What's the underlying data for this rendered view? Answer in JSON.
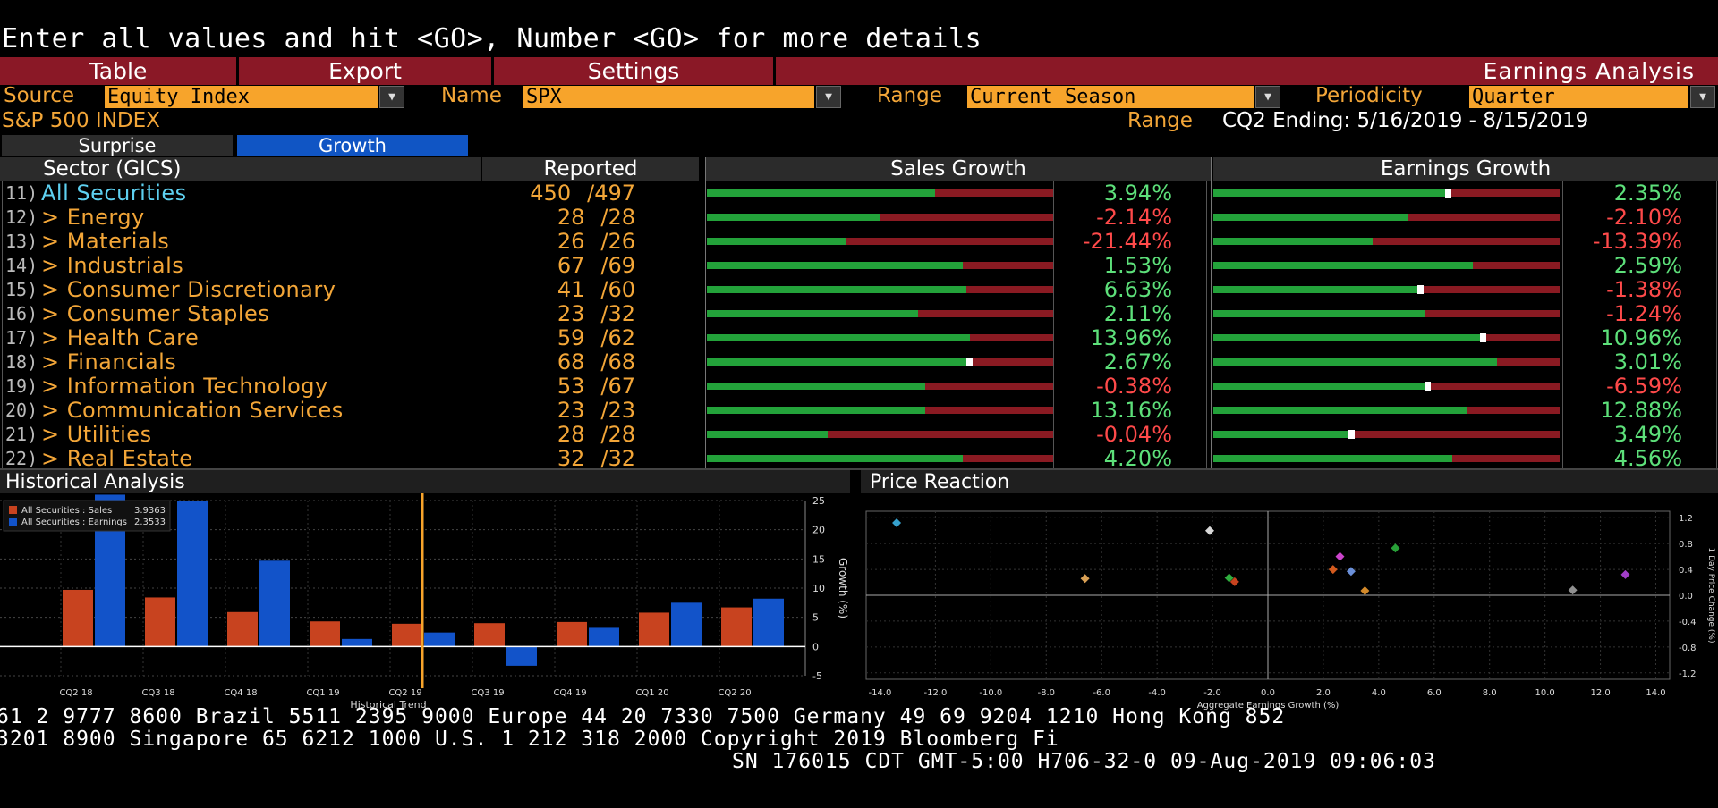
{
  "prompt": "Enter all values and hit <GO>, Number <GO> for more details",
  "menu": {
    "table": "Table",
    "export": "Export",
    "settings": "Settings",
    "title": "Earnings Analysis"
  },
  "filters": {
    "source_label": "Source",
    "source_value": "Equity Index",
    "name_label": "Name",
    "name_value": "SPX",
    "range_label": "Range",
    "range_value": "Current Season",
    "periodicity_label": "Periodicity",
    "periodicity_value": "Quarter"
  },
  "index_name": "S&P 500 INDEX",
  "range_info_label": "Range",
  "range_info_value": "CQ2 Ending: 5/16/2019 - 8/15/2019",
  "tabs": {
    "surprise": "Surprise",
    "growth": "Growth"
  },
  "table": {
    "headers": {
      "sector": "Sector (GICS)",
      "reported": "Reported",
      "sales": "Sales Growth",
      "earnings": "Earnings Growth"
    },
    "rows": [
      {
        "num": "11)",
        "name": "All Securities",
        "rep": "450",
        "total": "497",
        "sales": "3.94%",
        "sales_val": 3.94,
        "earn": "2.35%",
        "earn_val": 2.35
      },
      {
        "num": "12)",
        "name": "> Energy",
        "rep": "28",
        "total": "28",
        "sales": "-2.14%",
        "sales_val": -2.14,
        "earn": "-2.10%",
        "earn_val": -2.1
      },
      {
        "num": "13)",
        "name": "> Materials",
        "rep": "26",
        "total": "26",
        "sales": "-21.44%",
        "sales_val": -21.44,
        "earn": "-13.39%",
        "earn_val": -13.39
      },
      {
        "num": "14)",
        "name": "> Industrials",
        "rep": "67",
        "total": "69",
        "sales": "1.53%",
        "sales_val": 1.53,
        "earn": "2.59%",
        "earn_val": 2.59
      },
      {
        "num": "15)",
        "name": "> Consumer Discretionary",
        "rep": "41",
        "total": "60",
        "sales": "6.63%",
        "sales_val": 6.63,
        "earn": "-1.38%",
        "earn_val": -1.38
      },
      {
        "num": "16)",
        "name": "> Consumer Staples",
        "rep": "23",
        "total": "32",
        "sales": "2.11%",
        "sales_val": 2.11,
        "earn": "-1.24%",
        "earn_val": -1.24
      },
      {
        "num": "17)",
        "name": "> Health Care",
        "rep": "59",
        "total": "62",
        "sales": "13.96%",
        "sales_val": 13.96,
        "earn": "10.96%",
        "earn_val": 10.96
      },
      {
        "num": "18)",
        "name": "> Financials",
        "rep": "68",
        "total": "68",
        "sales": "2.67%",
        "sales_val": 2.67,
        "earn": "3.01%",
        "earn_val": 3.01
      },
      {
        "num": "19)",
        "name": "> Information Technology",
        "rep": "53",
        "total": "67",
        "sales": "-0.38%",
        "sales_val": -0.38,
        "earn": "-6.59%",
        "earn_val": -6.59
      },
      {
        "num": "20)",
        "name": "> Communication Services",
        "rep": "23",
        "total": "23",
        "sales": "13.16%",
        "sales_val": 13.16,
        "earn": "12.88%",
        "earn_val": 12.88
      },
      {
        "num": "21)",
        "name": "> Utilities",
        "rep": "28",
        "total": "28",
        "sales": "-0.04%",
        "sales_val": -0.04,
        "earn": "3.49%",
        "earn_val": 3.49
      },
      {
        "num": "22)",
        "name": "> Real Estate",
        "rep": "32",
        "total": "32",
        "sales": "4.20%",
        "sales_val": 4.2,
        "earn": "4.56%",
        "earn_val": 4.56
      }
    ],
    "bar_fill": {
      "sales": [
        0.66,
        0.5,
        0.4,
        0.74,
        0.75,
        0.61,
        0.76,
        0.75,
        0.63,
        0.63,
        0.35,
        0.74
      ],
      "sales_marker": [
        null,
        null,
        null,
        null,
        null,
        null,
        null,
        0.75,
        null,
        null,
        null,
        null
      ],
      "earnings": [
        0.67,
        0.56,
        0.46,
        0.75,
        0.59,
        0.61,
        0.77,
        0.82,
        0.61,
        0.73,
        0.39,
        0.69
      ],
      "earnings_marker": [
        0.67,
        null,
        null,
        null,
        0.59,
        null,
        0.77,
        null,
        0.61,
        null,
        0.39,
        null
      ]
    }
  },
  "historical": {
    "title": "Historical Analysis",
    "x_axis_label": "Historical Trend",
    "y_axis_label": "Growth (%)"
  },
  "price_reaction": {
    "title": "Price Reaction",
    "x_axis_label": "Aggregate Earnings Growth (%)",
    "y_axis_label": "1 Day Price Change (%)"
  },
  "chart_data": [
    {
      "type": "bar",
      "title": "Historical Analysis",
      "xlabel": "Historical Trend",
      "ylabel": "Growth (%)",
      "categories": [
        "CQ2 18",
        "CQ3 18",
        "CQ4 18",
        "CQ1 19",
        "CQ2 19",
        "CQ3 19",
        "CQ4 19",
        "CQ1 20",
        "CQ2 20"
      ],
      "series": [
        {
          "name": "All Securities : Sales",
          "color": "#c8431f",
          "values": [
            9.7,
            8.4,
            5.9,
            4.3,
            3.9,
            4.0,
            4.2,
            5.8,
            6.7
          ]
        },
        {
          "name": "All Securities : Earnings",
          "color": "#1253c9",
          "values": [
            26.0,
            25.0,
            14.7,
            1.3,
            2.4,
            -3.3,
            3.2,
            7.5,
            8.2
          ]
        }
      ],
      "legend_values": [
        "3.9363",
        "2.3533"
      ],
      "ylim": [
        -5,
        25
      ],
      "yticks": [
        25,
        20,
        15,
        10,
        5,
        0,
        -5
      ],
      "highlight_category": "CQ2 19",
      "legend": "top-left"
    },
    {
      "type": "scatter",
      "title": "Price Reaction",
      "xlabel": "Aggregate Earnings Growth (%)",
      "ylabel": "1 Day Price Change (%)",
      "xlim": [
        -14.5,
        14.5
      ],
      "ylim": [
        -1.3,
        1.3
      ],
      "xticks": [
        "-14.0",
        "-12.0",
        "-10.0",
        "-8.0",
        "-6.0",
        "-4.0",
        "-2.0",
        "0.0",
        "2.0",
        "4.0",
        "6.0",
        "8.0",
        "10.0",
        "12.0",
        "14.0"
      ],
      "yticks": [
        "1.2",
        "0.8",
        "0.4",
        "0.0",
        "-0.4",
        "-0.8",
        "-1.2"
      ],
      "points": [
        {
          "x": -13.4,
          "y": 1.12,
          "color": "#35a0cc"
        },
        {
          "x": -6.6,
          "y": 0.26,
          "color": "#d9a055"
        },
        {
          "x": -2.1,
          "y": 1.0,
          "color": "#d8d8d8"
        },
        {
          "x": -1.4,
          "y": 0.27,
          "color": "#2fae3e"
        },
        {
          "x": -1.2,
          "y": 0.21,
          "color": "#c8431f"
        },
        {
          "x": 2.35,
          "y": 0.4,
          "color": "#d25a1e"
        },
        {
          "x": 2.6,
          "y": 0.6,
          "color": "#cc44cc"
        },
        {
          "x": 3.0,
          "y": 0.37,
          "color": "#6a8fd8"
        },
        {
          "x": 3.5,
          "y": 0.07,
          "color": "#d48a2a"
        },
        {
          "x": 4.6,
          "y": 0.73,
          "color": "#28a038"
        },
        {
          "x": 11.0,
          "y": 0.08,
          "color": "#909090"
        },
        {
          "x": 12.9,
          "y": 0.32,
          "color": "#a13dc8"
        }
      ]
    }
  ],
  "footer": {
    "line1": "61 2 9777 8600 Brazil 5511 2395 9000 Europe 44 20 7330 7500 Germany 49 69 9204 1210 Hong Kong 852",
    "line2": " 3201 8900       Singapore 65 6212 1000       U.S. 1 212 318 2000       Copyright 2019 Bloomberg Fi",
    "line3": "SN 176015 CDT  GMT-5:00 H706-32-0 09-Aug-2019 09:06:03"
  }
}
